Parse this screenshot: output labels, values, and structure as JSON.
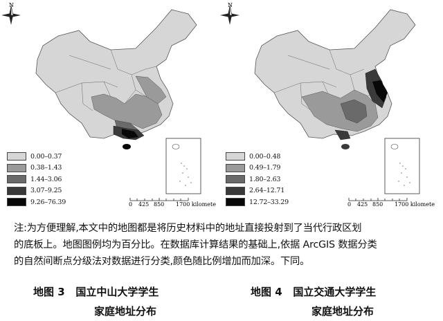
{
  "maps": [
    {
      "id": "left",
      "legend": [
        {
          "label": "0.00–0.37",
          "color": "#d6d6d6"
        },
        {
          "label": "0.38–1.43",
          "color": "#9a9a9a"
        },
        {
          "label": "1.44–3.06",
          "color": "#6a6a6a"
        },
        {
          "label": "3.07–9.25",
          "color": "#3a3a3a"
        },
        {
          "label": "9.26–76.39",
          "color": "#080808"
        }
      ],
      "scale_ticks": [
        "0",
        "425",
        "850",
        "1700 kilometers"
      ],
      "caption_number": "地图 3",
      "caption_title": "国立中山大学学生",
      "caption_line2": "家庭地址分布",
      "north_label": "N"
    },
    {
      "id": "right",
      "legend": [
        {
          "label": "0.00–0.48",
          "color": "#d6d6d6"
        },
        {
          "label": "0.49–1.79",
          "color": "#9a9a9a"
        },
        {
          "label": "1.80–2.63",
          "color": "#6a6a6a"
        },
        {
          "label": "2.64–12.71",
          "color": "#3a3a3a"
        },
        {
          "label": "12.72–33.29",
          "color": "#080808"
        }
      ],
      "scale_ticks": [
        "0",
        "425",
        "850",
        "1700 kilometers"
      ],
      "caption_number": "地图 4",
      "caption_title": "国立交通大学学生",
      "caption_line2": "家庭地址分布",
      "north_label": "N"
    }
  ],
  "note": {
    "line1": "注:为方便理解,本文中的地图都是将历史材料中的地址直接投射到了当代行政区划",
    "line2": "的底板上。地图图例均为百分比。在数据库计算结果的基础上,依据 ArcGIS 数据分类",
    "line3": "的自然间断点分级法对数据进行分类,颜色随比例增加而加深。下同。"
  }
}
